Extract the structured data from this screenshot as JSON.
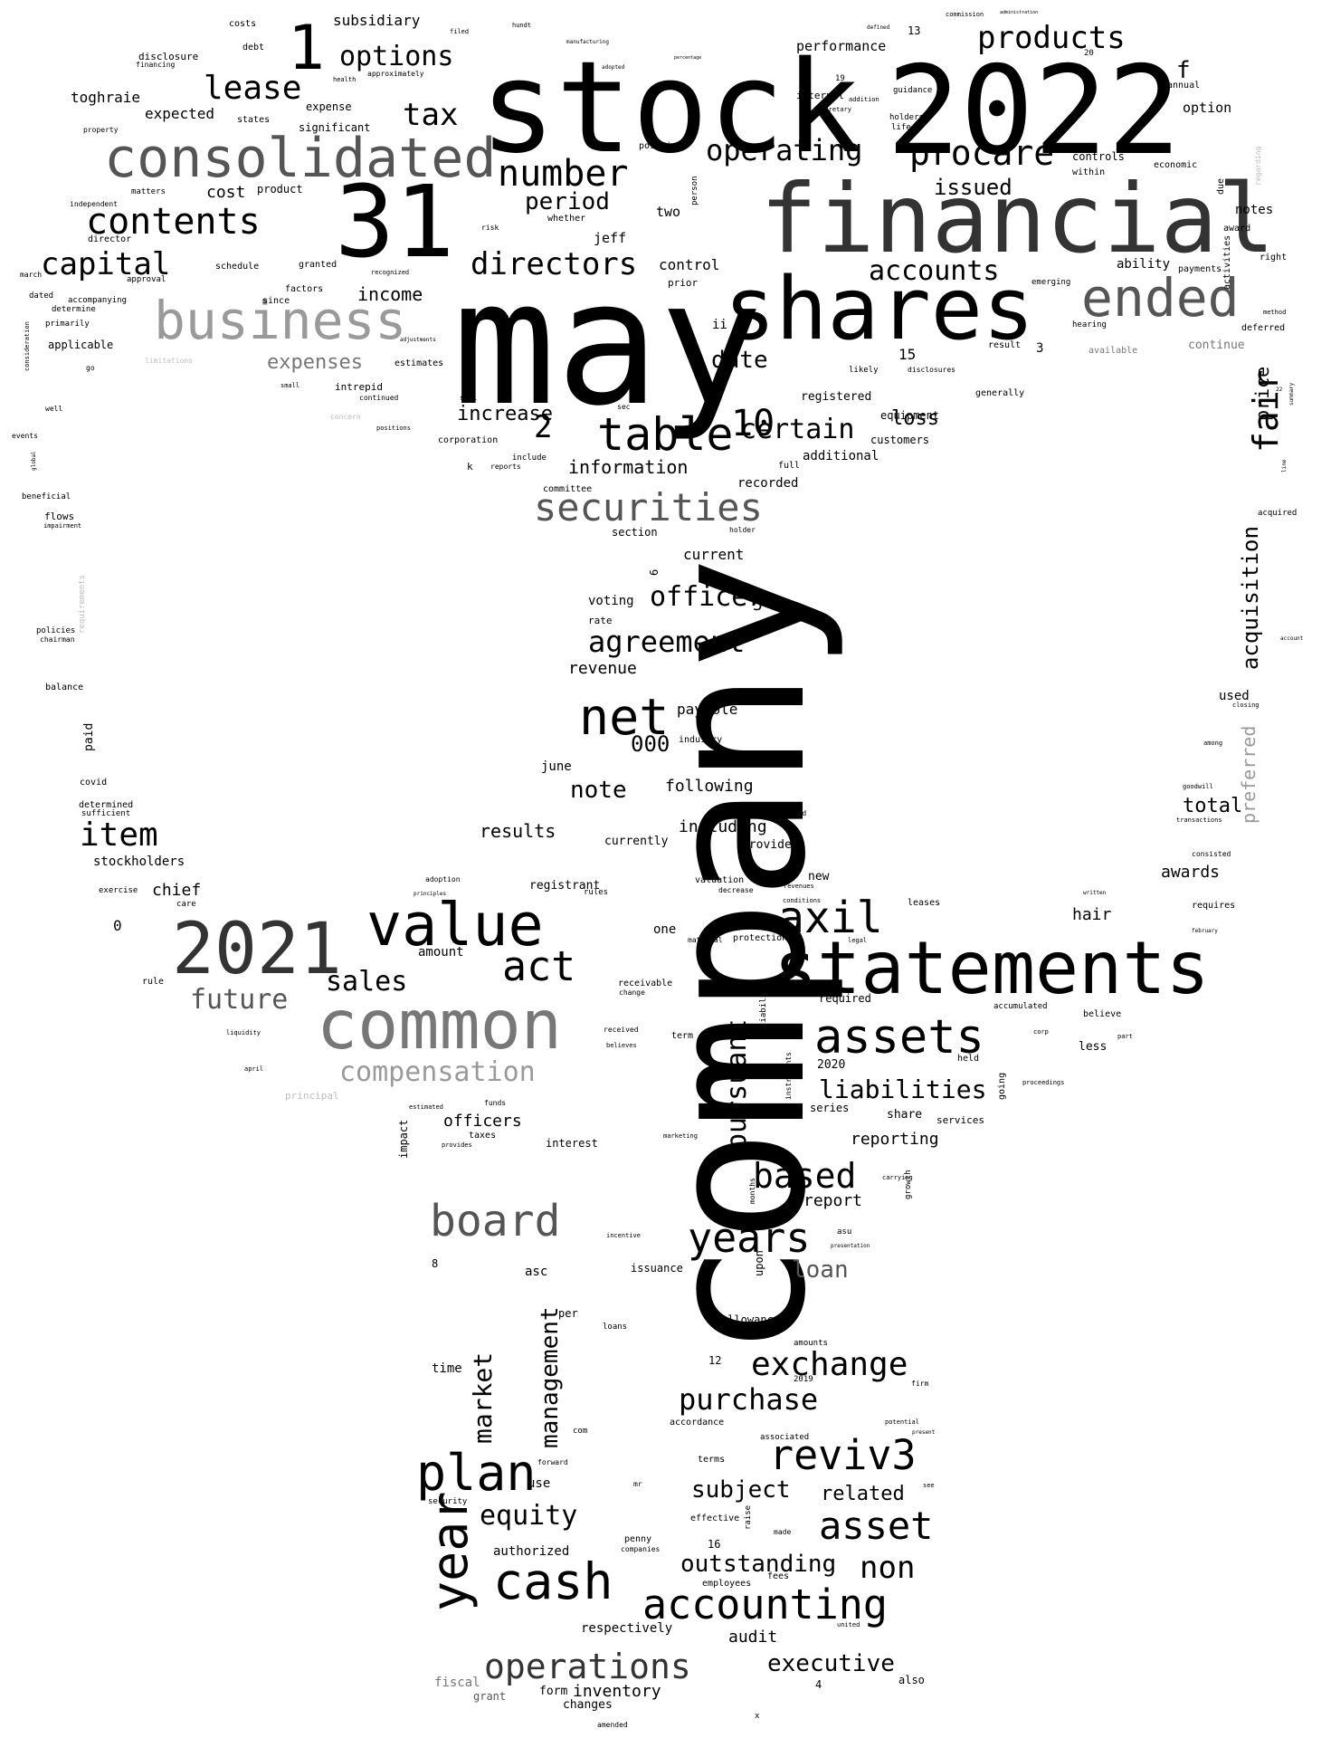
{
  "words": {
    "company": "company",
    "may": "may",
    "stock": "stock",
    "y2022": "2022",
    "financial": "financial",
    "shares": "shares",
    "n31": "31",
    "consolidated": "consolidated",
    "statements": "statements",
    "common": "common",
    "y2021": "2021",
    "business": "business",
    "ended": "ended",
    "value": "value",
    "n1": "1",
    "table": "table",
    "net": "net",
    "securities": "securities",
    "board": "board",
    "plan": "plan",
    "cash": "cash",
    "year": "year",
    "accounting": "accounting",
    "assets": "assets",
    "axil": "axil",
    "act": "act",
    "years": "years",
    "revi3": "reviv3",
    "asset": "asset",
    "operations": "operations",
    "exchange": "exchange",
    "procare": "procare",
    "products": "products",
    "contents": "contents",
    "lease": "lease",
    "options": "options",
    "number": "number",
    "operating": "operating",
    "directors": "directors",
    "accounts": "accounts",
    "capital": "capital",
    "item": "item",
    "agreement": "agreement",
    "officer": "officer",
    "based": "based",
    "purchase": "purchase",
    "liabilities": "liabilities",
    "pursuant": "pursuant",
    "compensation": "compensation",
    "sales": "sales",
    "future": "future",
    "fair": "fair",
    "acquisition": "acquisition",
    "tax": "tax",
    "period": "period",
    "certain": "certain",
    "n10": "10",
    "n2": "2",
    "equity": "equity",
    "market": "market",
    "management": "management",
    "outstanding": "outstanding",
    "non": "non",
    "related": "related",
    "subject": "subject",
    "executive": "executive",
    "loan": "loan",
    "note": "note",
    "date": "date",
    "increase": "increase",
    "expenses": "expenses",
    "income": "income",
    "issued": "issued",
    "loss": "loss",
    "information": "information",
    "total": "total",
    "hair": "hair",
    "awards": "awards",
    "results": "results",
    "following": "following",
    "including": "including",
    "report": "report",
    "reporting": "reporting",
    "officers": "officers",
    "inventory": "inventory",
    "audit": "audit",
    "chief": "chief",
    "stockholders": "stockholders",
    "n000": "000",
    "revenue": "revenue",
    "payable": "payable",
    "current": "current",
    "control": "control",
    "ended2": "price",
    "preferred": "preferred",
    "performance": "performance",
    "subsidiary": "subsidiary",
    "cost": "cost",
    "expected": "expected",
    "toghraie": "toghraie",
    "f": "f",
    "option": "option",
    "notes": "notes",
    "ability": "ability",
    "additional": "additional",
    "recorded": "recorded",
    "voting": "voting",
    "june": "june",
    "amount": "amount",
    "impact": "impact",
    "interest": "interest",
    "upon": "upon",
    "asc": "asc",
    "customer": "customer",
    "allowance": "allowance",
    "time": "time",
    "use": "use",
    "authorized": "authorized",
    "respectively": "respectively",
    "form": "form",
    "changes": "changes",
    "fiscal": "fiscal",
    "grant": "grant",
    "also": "also",
    "used": "used",
    "equipment": "equipment",
    "customers": "customers",
    "registered": "registered",
    "n15": "15",
    "n3": "3",
    "jeff": "jeff",
    "two": "two",
    "ii": "ii",
    "currently": "currently",
    "provided": "provided",
    "registrant": "registrant",
    "valuation": "valuation",
    "new": "new",
    "one": "one",
    "series": "series",
    "share": "share",
    "services": "services",
    "basis": "basis",
    "issuance": "issuance",
    "n2020": "2020",
    "less": "less",
    "leases": "leases",
    "requires": "requires",
    "held": "held",
    "accumulated": "accumulated",
    "believe": "believe",
    "continue": "continue",
    "deferred": "deferred",
    "right": "right",
    "payments": "payments",
    "economic": "economic",
    "controls": "controls",
    "within": "within",
    "due": "due",
    "award": "award",
    "activities": "activities",
    "annual": "annual",
    "n13": "13",
    "n20": "20",
    "internal": "internal",
    "guidance": "guidance",
    "holders": "holders",
    "life": "life",
    "position": "position",
    "expense": "expense",
    "significant": "significant",
    "product": "product",
    "costs": "costs",
    "debt": "debt",
    "disclosure": "disclosure",
    "financing": "financing",
    "states": "states",
    "property": "property",
    "independent": "independent",
    "matters": "matters",
    "director": "director",
    "march": "march",
    "approval": "approval",
    "schedule": "schedule",
    "granted": "granted",
    "factors": "factors",
    "dated": "dated",
    "accompanying": "accompanying",
    "determine": "determine",
    "primarily": "primarily",
    "applicable": "applicable",
    "go": "go",
    "limitations": "limitations",
    "since": "since",
    "intrepid": "intrepid",
    "estimates": "estimates",
    "continued": "continued",
    "positions": "positions",
    "corporation": "corporation",
    "reports": "reports",
    "include": "include",
    "committee": "committee",
    "section": "section",
    "holder": "holder",
    "k": "k",
    "full": "full",
    "well": "well",
    "events": "events",
    "beneficial": "beneficial",
    "flows": "flows",
    "impairment": "impairment",
    "requirements": "requirements",
    "policies": "policies",
    "chairman": "chairman",
    "balance": "balance",
    "paid": "paid",
    "covid": "covid",
    "determined": "determined",
    "sufficient": "sufficient",
    "exercise": "exercise",
    "care": "care",
    "n0": "0",
    "rule": "rule",
    "liquidity": "liquidity",
    "april": "april",
    "principal": "principal",
    "approximately": "approximately",
    "sec": "sec",
    "concern": "concern",
    "available": "available",
    "result": "result",
    "generally": "generally",
    "likely": "likely",
    "disclosures": "disclosures",
    "hearing": "hearing",
    "method": "method",
    "emerging": "emerging",
    "acquired": "acquired",
    "filer": "filer",
    "account": "account",
    "closing": "closing",
    "among": "among",
    "goodwill": "goodwill",
    "transactions": "transactions",
    "consisted": "consisted",
    "written": "written",
    "february": "february",
    "going": "going",
    "proceedings": "proceedings",
    "corp": "corp",
    "part": "part",
    "growth": "growth",
    "carrying": "carrying",
    "firm": "firm",
    "potential": "potential",
    "present": "present",
    "see": "see",
    "n2019": "2019",
    "amounts": "amounts",
    "associated": "associated",
    "made": "made",
    "effective": "effective",
    "raise": "raise",
    "employees": "employees",
    "fees": "fees",
    "penny": "penny",
    "companies": "companies",
    "n16": "16",
    "accordance": "accordance",
    "terms": "terms",
    "n12": "12",
    "com": "com",
    "forward": "forward",
    "security": "security",
    "per": "per",
    "loans": "loans",
    "n8": "8",
    "term": "term",
    "n2b": "2",
    "received": "received",
    "believes": "believes",
    "receivable": "receivable",
    "change": "change",
    "liability": "liability",
    "material": "material",
    "protection": "protection",
    "conditions": "conditions",
    "revenues": "revenues",
    "decrease": "decrease",
    "restricted": "restricted",
    "legal": "legal",
    "required": "required",
    "instruments": "instruments",
    "months": "months",
    "asu": "asu",
    "presentation": "presentation",
    "taxes": "taxes",
    "funds": "funds",
    "estimated": "estimated",
    "provides": "provides",
    "marketing": "marketing",
    "incentive": "incentive",
    "adoption": "adoption",
    "principles": "principles",
    "rules": "rules",
    "industry": "industry",
    "rate": "rate",
    "n5": "5",
    "n6": "6",
    "sell": "sell",
    "whether": "whether",
    "prior": "prior",
    "risk": "risk",
    "person": "person",
    "amended": "amended",
    "united": "united",
    "n4": "4",
    "x": "x",
    "mr": "mr",
    "n19": "19",
    "secretary": "secretary",
    "manufacturing": "manufacturing",
    "filed": "filed",
    "hundt": "hundt",
    "commission": "commission",
    "administration": "administration",
    "defined": "defined",
    "percentage": "percentage",
    "standards": "standards",
    "adopted": "adopted",
    "health": "health",
    "addition": "addition",
    "regarding": "regarding",
    "summary": "summary",
    "line": "line",
    "n22": "22",
    "small": "small",
    "adjustments": "adjustments",
    "recognized": "recognized",
    "consideration": "consideration",
    "global": "global"
  },
  "colors": {
    "tone1": "#000000",
    "tone2": "#333333",
    "tone3": "#555555",
    "tone4": "#777777",
    "tone5": "#9a9a9a",
    "tone6": "#bdbdbd",
    "background": "#ffffff"
  }
}
